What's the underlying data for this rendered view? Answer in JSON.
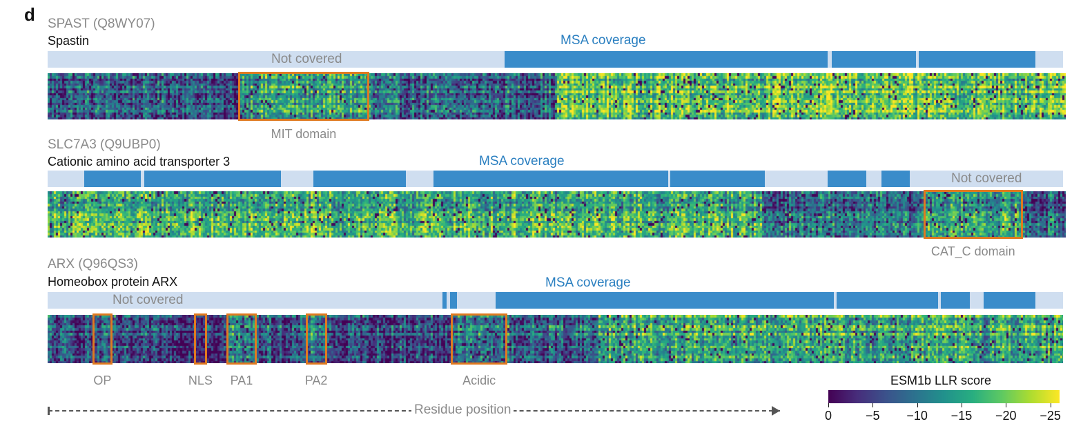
{
  "panel_letter": "d",
  "proteins": [
    {
      "gene": "SPAST (Q8WY07)",
      "name": "Spastin",
      "msa_label": "MSA coverage",
      "not_covered_label": "Not covered",
      "coverage_segments": [
        [
          0.45,
          0.768
        ],
        [
          0.772,
          0.855
        ],
        [
          0.858,
          0.973
        ]
      ],
      "domains": [
        {
          "label": "MIT domain",
          "start": 0.187,
          "end": 0.316
        }
      ],
      "pattern": {
        "regions": [
          [
            0.0,
            0.16,
            0.3
          ],
          [
            0.16,
            0.187,
            0.18
          ],
          [
            0.187,
            0.316,
            0.55
          ],
          [
            0.316,
            0.5,
            0.32
          ],
          [
            0.5,
            1.0,
            0.72
          ]
        ]
      }
    },
    {
      "gene": "SLC7A3 (Q9UBP0)",
      "name": "Cationic amino acid transporter 3",
      "msa_label": "MSA coverage",
      "not_covered_label": "Not covered",
      "coverage_segments": [
        [
          0.036,
          0.092
        ],
        [
          0.095,
          0.23
        ],
        [
          0.262,
          0.353
        ],
        [
          0.38,
          0.611
        ],
        [
          0.613,
          0.706
        ],
        [
          0.768,
          0.806
        ],
        [
          0.821,
          0.849
        ]
      ],
      "domains": [
        {
          "label": "CAT_C domain",
          "start": 0.86,
          "end": 0.958
        }
      ],
      "pattern": {
        "regions": [
          [
            0.0,
            0.7,
            0.62
          ],
          [
            0.7,
            0.86,
            0.35
          ],
          [
            0.86,
            0.958,
            0.55
          ],
          [
            0.958,
            1.0,
            0.3
          ]
        ]
      }
    },
    {
      "gene": "ARX (Q96QS3)",
      "name": "Homeobox protein ARX",
      "msa_label": "MSA coverage",
      "not_covered_label": "Not covered",
      "coverage_segments": [
        [
          0.389,
          0.393
        ],
        [
          0.396,
          0.403
        ],
        [
          0.441,
          0.774
        ],
        [
          0.777,
          0.877
        ],
        [
          0.88,
          0.908
        ],
        [
          0.922,
          0.973
        ]
      ],
      "domains": [
        {
          "label": "OP",
          "start": 0.044,
          "end": 0.064
        },
        {
          "label": "NLS",
          "start": 0.144,
          "end": 0.157
        },
        {
          "label": "PA1",
          "start": 0.176,
          "end": 0.206
        },
        {
          "label": "PA2",
          "start": 0.254,
          "end": 0.275
        },
        {
          "label": "Acidic",
          "start": 0.397,
          "end": 0.453
        }
      ],
      "pattern": {
        "regions": [
          [
            0.0,
            0.07,
            0.28
          ],
          [
            0.07,
            0.176,
            0.22
          ],
          [
            0.176,
            0.206,
            0.45
          ],
          [
            0.206,
            0.254,
            0.3
          ],
          [
            0.254,
            0.275,
            0.42
          ],
          [
            0.275,
            0.397,
            0.25
          ],
          [
            0.397,
            0.453,
            0.4
          ],
          [
            0.453,
            0.54,
            0.35
          ],
          [
            0.54,
            1.0,
            0.62
          ]
        ]
      }
    }
  ],
  "axis_label": "Residue position",
  "colorbar": {
    "title": "ESM1b LLR score",
    "ticks": [
      "0",
      "−5",
      "−10",
      "−15",
      "−20",
      "−25"
    ],
    "colors": [
      "#440154",
      "#472d7b",
      "#3b528b",
      "#2c728e",
      "#21918c",
      "#28ae80",
      "#5ec962",
      "#addc30",
      "#fde725"
    ]
  }
}
